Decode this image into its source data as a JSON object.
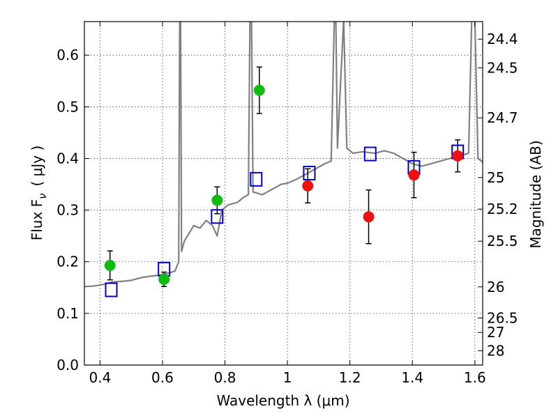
{
  "chart_data": {
    "type": "scatter",
    "xlabel": "Wavelength  λ (μm)",
    "ylabel_left": "Flux  F",
    "ylabel_left_sub": "ν",
    "ylabel_left_unit": "( μJy )",
    "ylabel_right": "Magnitude (AB)",
    "xlim": [
      0.35,
      1.625
    ],
    "ylim": [
      0.0,
      0.665
    ],
    "grid": true,
    "x_ticks": [
      0.4,
      0.6,
      0.8,
      1.0,
      1.2,
      1.4,
      1.6
    ],
    "x_tick_labels": [
      "0.4",
      "0.6",
      "0.8",
      "1",
      "1.2",
      "1.4",
      "1.6"
    ],
    "y_ticks": [
      0.0,
      0.1,
      0.2,
      0.3,
      0.4,
      0.5,
      0.6
    ],
    "y_tick_labels": [
      "0.0",
      "0.1",
      "0.2",
      "0.3",
      "0.4",
      "0.5",
      "0.6"
    ],
    "right_ticks": [
      {
        "label": "24.4",
        "mag": 24.4
      },
      {
        "label": "24.5",
        "mag": 24.5
      },
      {
        "label": "24.7",
        "mag": 24.7
      },
      {
        "label": "25",
        "mag": 25.0
      },
      {
        "label": "25.2",
        "mag": 25.2
      },
      {
        "label": "25.5",
        "mag": 25.45
      },
      {
        "label": "26",
        "mag": 25.95
      },
      {
        "label": "26.5",
        "mag": 26.5
      },
      {
        "label": "27",
        "mag": 26.9
      },
      {
        "label": "28",
        "mag": 27.8
      }
    ],
    "colors": {
      "spectrum": "#808080",
      "green_points": "#11bb11",
      "red_points": "#ee1111",
      "model_squares": "#0000cc",
      "error_bars": "#000000"
    },
    "series": [
      {
        "kind": "spectrum",
        "points": [
          [
            0.35,
            0.152
          ],
          [
            0.38,
            0.153
          ],
          [
            0.41,
            0.156
          ],
          [
            0.44,
            0.161
          ],
          [
            0.47,
            0.162
          ],
          [
            0.5,
            0.164
          ],
          [
            0.53,
            0.169
          ],
          [
            0.56,
            0.172
          ],
          [
            0.59,
            0.174
          ],
          [
            0.62,
            0.178
          ],
          [
            0.64,
            0.182
          ],
          [
            0.652,
            0.2
          ],
          [
            0.655,
            0.67
          ],
          [
            0.658,
            0.67
          ],
          [
            0.661,
            0.22
          ],
          [
            0.67,
            0.24
          ],
          [
            0.68,
            0.25
          ],
          [
            0.7,
            0.27
          ],
          [
            0.72,
            0.265
          ],
          [
            0.74,
            0.28
          ],
          [
            0.76,
            0.27
          ],
          [
            0.775,
            0.25
          ],
          [
            0.79,
            0.3
          ],
          [
            0.81,
            0.31
          ],
          [
            0.84,
            0.315
          ],
          [
            0.86,
            0.325
          ],
          [
            0.875,
            0.33
          ],
          [
            0.88,
            0.67
          ],
          [
            0.885,
            0.67
          ],
          [
            0.89,
            0.335
          ],
          [
            0.92,
            0.33
          ],
          [
            0.95,
            0.34
          ],
          [
            0.98,
            0.35
          ],
          [
            1.0,
            0.352
          ],
          [
            1.03,
            0.36
          ],
          [
            1.06,
            0.37
          ],
          [
            1.09,
            0.38
          ],
          [
            1.12,
            0.39
          ],
          [
            1.14,
            0.395
          ],
          [
            1.15,
            0.67
          ],
          [
            1.155,
            0.67
          ],
          [
            1.16,
            0.42
          ],
          [
            1.18,
            0.67
          ],
          [
            1.19,
            0.42
          ],
          [
            1.21,
            0.41
          ],
          [
            1.24,
            0.413
          ],
          [
            1.28,
            0.41
          ],
          [
            1.31,
            0.415
          ],
          [
            1.34,
            0.41
          ],
          [
            1.37,
            0.4
          ],
          [
            1.4,
            0.39
          ],
          [
            1.43,
            0.385
          ],
          [
            1.46,
            0.39
          ],
          [
            1.49,
            0.395
          ],
          [
            1.52,
            0.4
          ],
          [
            1.55,
            0.405
          ],
          [
            1.58,
            0.41
          ],
          [
            1.59,
            0.67
          ],
          [
            1.6,
            0.67
          ],
          [
            1.61,
            0.4
          ],
          [
            1.625,
            0.393
          ]
        ]
      },
      {
        "kind": "green_points",
        "points": [
          {
            "x": 0.432,
            "y": 0.193,
            "err": 0.028
          },
          {
            "x": 0.605,
            "y": 0.166,
            "err": 0.014
          },
          {
            "x": 0.775,
            "y": 0.319,
            "err": 0.026
          },
          {
            "x": 0.91,
            "y": 0.532,
            "err": 0.045
          }
        ]
      },
      {
        "kind": "red_points",
        "points": [
          {
            "x": 1.065,
            "y": 0.347,
            "err": 0.033
          },
          {
            "x": 1.26,
            "y": 0.287,
            "err": 0.052
          },
          {
            "x": 1.405,
            "y": 0.368,
            "err": 0.044
          },
          {
            "x": 1.545,
            "y": 0.405,
            "err": 0.031
          }
        ]
      },
      {
        "kind": "model_squares",
        "points": [
          {
            "x": 0.436,
            "y": 0.145
          },
          {
            "x": 0.605,
            "y": 0.185
          },
          {
            "x": 0.775,
            "y": 0.287
          },
          {
            "x": 0.9,
            "y": 0.359
          },
          {
            "x": 1.07,
            "y": 0.371
          },
          {
            "x": 1.265,
            "y": 0.408
          },
          {
            "x": 1.405,
            "y": 0.382
          },
          {
            "x": 1.545,
            "y": 0.412
          }
        ]
      }
    ]
  }
}
